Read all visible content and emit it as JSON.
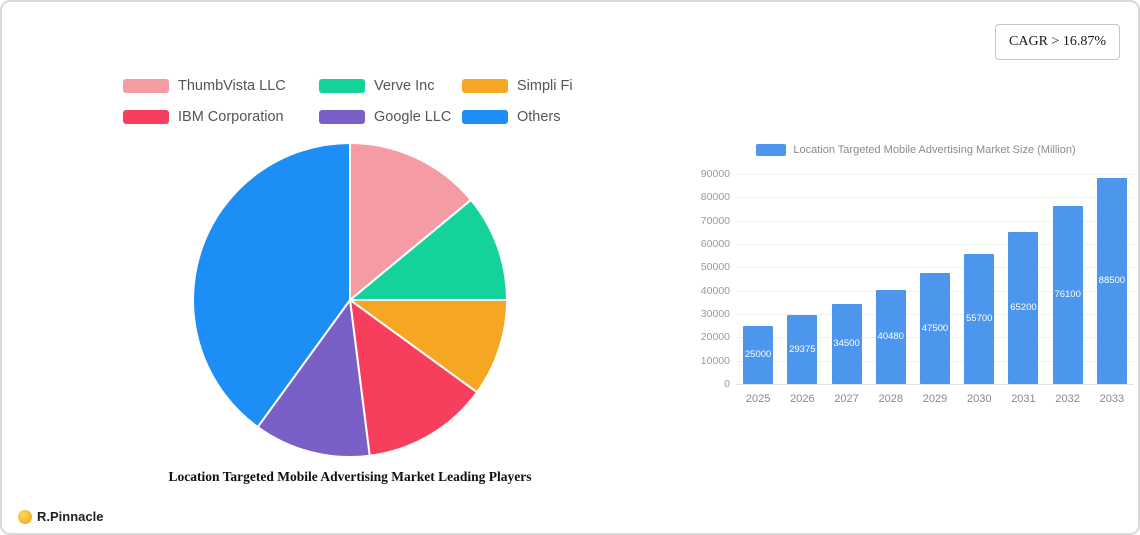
{
  "cagr_box": {
    "label": "CAGR > 16.87%"
  },
  "logo": {
    "icon": "coin-icon",
    "text": "R.Pinnacle"
  },
  "chart_data": [
    {
      "type": "pie",
      "title": "Location Targeted Mobile Advertising Market Leading Players",
      "labels": [
        "ThumbVista LLC",
        "Verve Inc",
        "Simpli Fi",
        "IBM Corporation",
        "Google LLC",
        "Others"
      ],
      "values": [
        14,
        11,
        10,
        13,
        12,
        40
      ],
      "colors": [
        "#f49ba3",
        "#13d39b",
        "#f5a623",
        "#f83e5d",
        "#7a5fc7",
        "#1e8ef7"
      ],
      "legend_position": "top",
      "legend_rows": [
        [
          "ThumbVista LLC",
          "Verve Inc",
          "Simpli Fi"
        ],
        [
          "IBM Corporation",
          "Google LLC",
          "Others"
        ]
      ],
      "start_angle_deg": -90,
      "direction": "clockwise"
    },
    {
      "type": "bar",
      "title": "Location Targeted Mobile Advertising Market Size (Million)",
      "categories": [
        "2025",
        "2026",
        "2027",
        "2028",
        "2029",
        "2030",
        "2031",
        "2032",
        "2033"
      ],
      "values": [
        25000,
        29375,
        34500,
        40480,
        47500,
        55700,
        65200,
        76100,
        88500
      ],
      "ylim": [
        0,
        90000
      ],
      "ytick_step": 10000,
      "bar_color": "#4d96ee",
      "value_label_color": "#ffffff",
      "legend_position": "top",
      "grid": "horizontal-light",
      "xlabel": "",
      "ylabel": ""
    }
  ]
}
